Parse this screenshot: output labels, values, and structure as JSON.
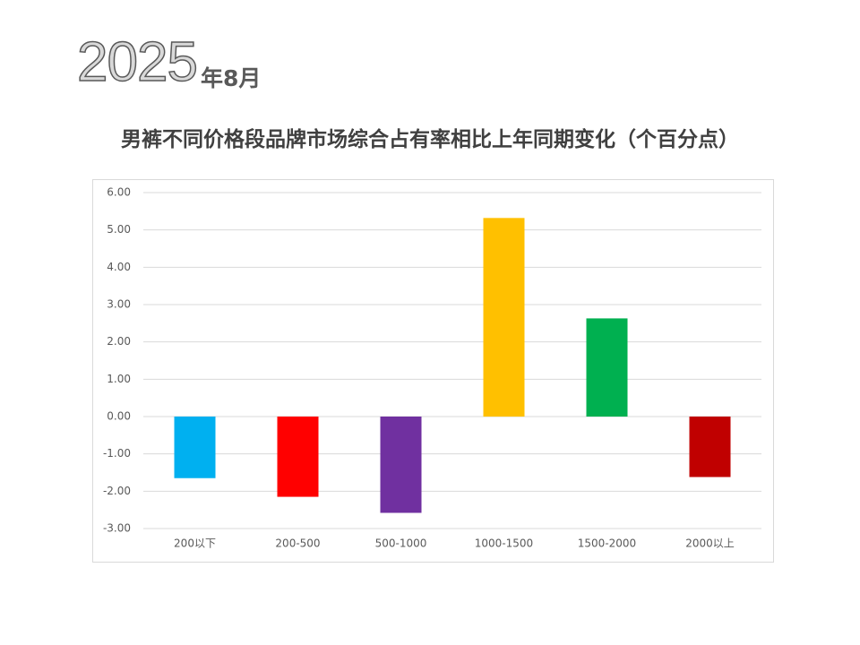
{
  "header": {
    "year": "2025",
    "month": "年8月"
  },
  "chart_data": {
    "type": "bar",
    "title": "男裤不同价格段品牌市场综合占有率相比上年同期变化（个百分点）",
    "categories": [
      "200以下",
      "200-500",
      "500-1000",
      "1000-1500",
      "1500-2000",
      "2000以上"
    ],
    "values": [
      -1.65,
      -2.15,
      -2.58,
      5.32,
      2.63,
      -1.62
    ],
    "colors": [
      "#00b0f0",
      "#ff0000",
      "#7030a0",
      "#ffc000",
      "#00b050",
      "#c00000"
    ],
    "ylim": [
      -3,
      6
    ],
    "yticks": [
      {
        "value": -3,
        "label": "-3.00"
      },
      {
        "value": -2,
        "label": "-2.00"
      },
      {
        "value": -1,
        "label": "-1.00"
      },
      {
        "value": 0,
        "label": "0.00"
      },
      {
        "value": 1,
        "label": "1.00"
      },
      {
        "value": 2,
        "label": "2.00"
      },
      {
        "value": 3,
        "label": "3.00"
      },
      {
        "value": 4,
        "label": "4.00"
      },
      {
        "value": 5,
        "label": "5.00"
      },
      {
        "value": 6,
        "label": "6.00"
      }
    ],
    "grid": true
  }
}
